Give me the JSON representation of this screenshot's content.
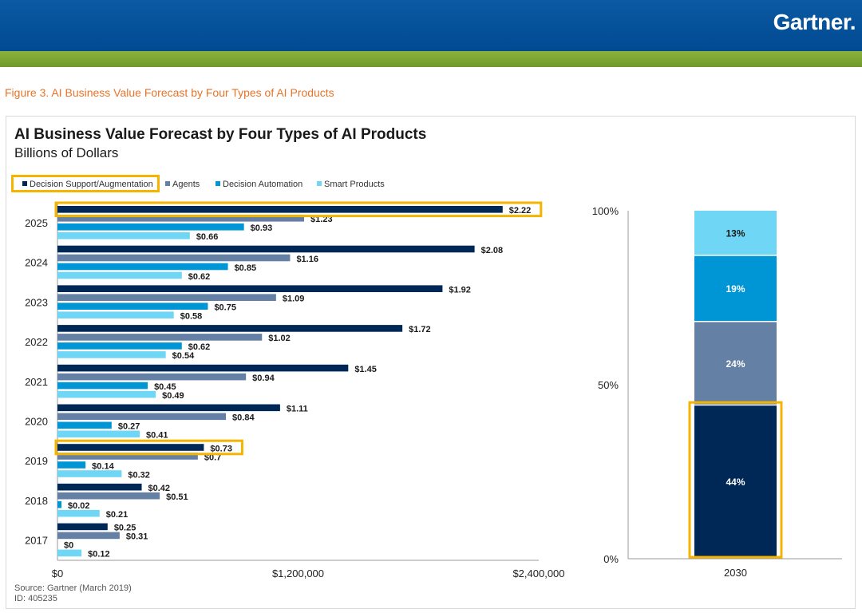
{
  "header": {
    "brand": "Gartner."
  },
  "figure_caption": "Figure 3. AI Business Value Forecast by Four Types of AI Products",
  "footer": {
    "source": "Source: Gartner (March 2019)",
    "id": "ID: 405235"
  },
  "colors": {
    "header_blue": "#004a92",
    "green_bar": "#7aa330",
    "caption_orange": "#e8742a",
    "highlight": "#f5b400",
    "decision_support": "#002856",
    "agents": "#6480a5",
    "decision_automation": "#0096d6",
    "smart_products": "#6fd6f5"
  },
  "chart_data": [
    {
      "type": "bar",
      "orientation": "horizontal",
      "title": "AI Business Value Forecast by Four Types of AI Products",
      "subtitle": "Billions of Dollars",
      "legend_position": "top-left",
      "categories": [
        "2025",
        "2024",
        "2023",
        "2022",
        "2021",
        "2020",
        "2019",
        "2018",
        "2017"
      ],
      "series": [
        {
          "name": "Decision Support/Augmentation",
          "values": [
            2.22,
            2.08,
            1.92,
            1.72,
            1.45,
            1.11,
            0.73,
            0.42,
            0.25
          ],
          "labels": [
            "$2.22",
            "$2.08",
            "$1.92",
            "$1.72",
            "$1.45",
            "$1.11",
            "$0.73",
            "$0.42",
            "$0.25"
          ]
        },
        {
          "name": "Agents",
          "values": [
            1.23,
            1.16,
            1.09,
            1.02,
            0.94,
            0.84,
            0.7,
            0.51,
            0.31
          ],
          "labels": [
            "$1.23",
            "$1.16",
            "$1.09",
            "$1.02",
            "$0.94",
            "$0.84",
            "$0.7",
            "$0.51",
            "$0.31"
          ]
        },
        {
          "name": "Decision Automation",
          "values": [
            0.93,
            0.85,
            0.75,
            0.62,
            0.45,
            0.27,
            0.14,
            0.02,
            0.0
          ],
          "labels": [
            "$0.93",
            "$0.85",
            "$0.75",
            "$0.62",
            "$0.45",
            "$0.27",
            "$0.14",
            "$0.02",
            "$0"
          ]
        },
        {
          "name": "Smart Products",
          "values": [
            0.66,
            0.62,
            0.58,
            0.54,
            0.49,
            0.41,
            0.32,
            0.21,
            0.12
          ],
          "labels": [
            "$0.66",
            "$0.62",
            "$0.58",
            "$0.54",
            "$0.49",
            "$0.41",
            "$0.32",
            "$0.21",
            "$0.12"
          ]
        }
      ],
      "x_axis": {
        "ticks": [
          "$0",
          "$1,200,000",
          "$2,400,000"
        ],
        "range": [
          0,
          2.4
        ]
      },
      "highlighted": [
        {
          "category": "2025",
          "series": "Decision Support/Augmentation"
        },
        {
          "category": "2019",
          "series": "Decision Support/Augmentation"
        }
      ]
    },
    {
      "type": "bar",
      "orientation": "vertical",
      "stacked": true,
      "categories": [
        "2030"
      ],
      "series": [
        {
          "name": "Decision Support/Augmentation",
          "value": 44,
          "label": "44%"
        },
        {
          "name": "Agents",
          "value": 24,
          "label": "24%"
        },
        {
          "name": "Decision Automation",
          "value": 19,
          "label": "19%"
        },
        {
          "name": "Smart Products",
          "value": 13,
          "label": "13%"
        }
      ],
      "y_axis": {
        "ticks": [
          "0%",
          "50%",
          "100%"
        ],
        "range": [
          0,
          100
        ]
      },
      "highlighted": [
        "Decision Support/Augmentation"
      ]
    }
  ]
}
